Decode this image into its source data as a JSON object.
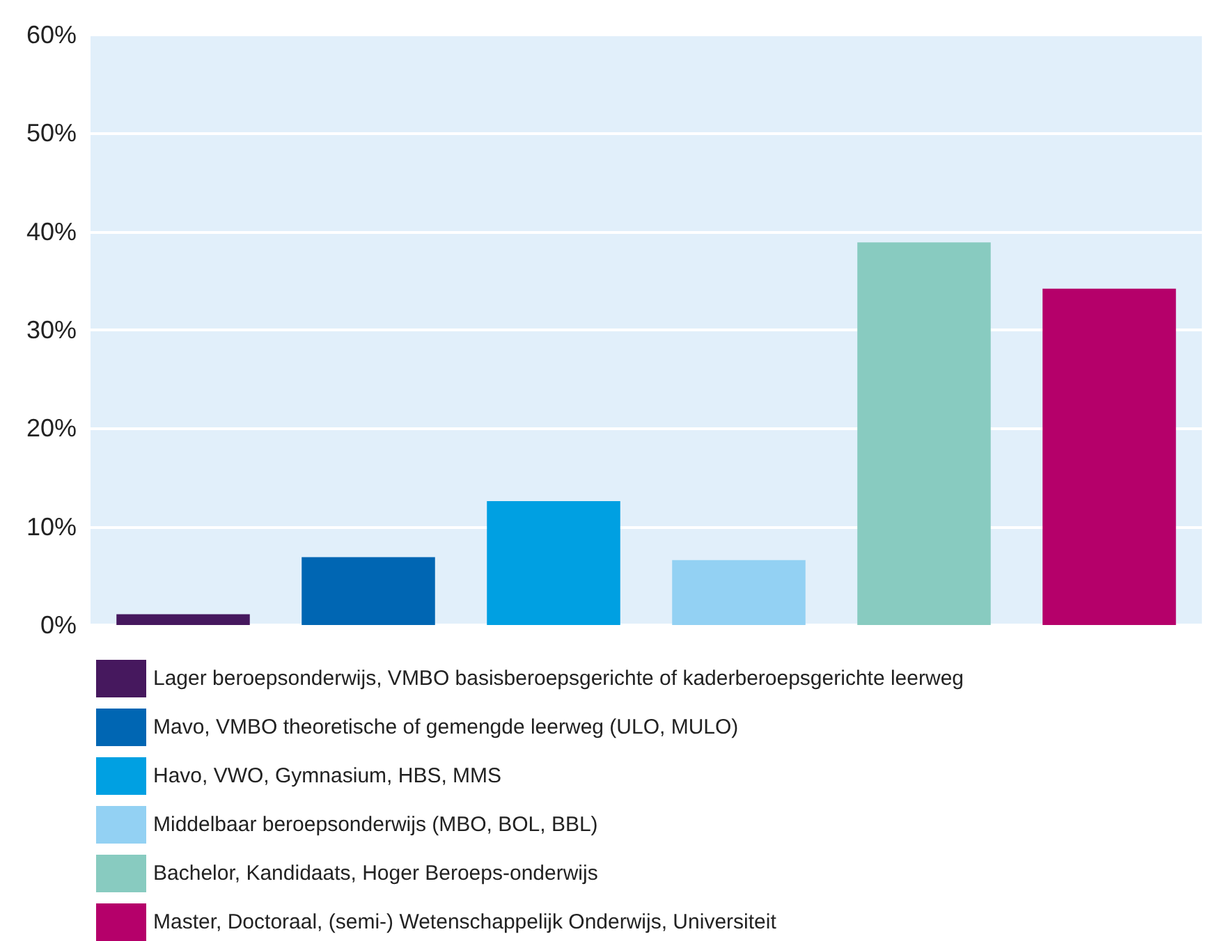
{
  "chart_data": {
    "type": "bar",
    "categories": [
      null,
      null,
      null,
      null,
      null,
      null
    ],
    "series": [
      {
        "name": "Lager beroepsonderwijs, VMBO basisberoepsgerichte of kaderberoepsgerichte leerweg",
        "color": "#46185e",
        "values": [
          1.1,
          null,
          null,
          null,
          null,
          null
        ]
      },
      {
        "name": "Mavo, VMBO theoretische of gemengde leerweg (ULO, MULO)",
        "color": "#0066b3",
        "values": [
          null,
          6.9,
          null,
          null,
          null,
          null
        ]
      },
      {
        "name": "Havo, VWO, Gymnasium, HBS, MMS",
        "color": "#00a0e2",
        "values": [
          null,
          null,
          12.6,
          null,
          null,
          null
        ]
      },
      {
        "name": "Middelbaar beroepsonderwijs (MBO, BOL, BBL)",
        "color": "#93d1f3",
        "values": [
          null,
          null,
          null,
          6.6,
          null,
          null
        ]
      },
      {
        "name": "Bachelor, Kandidaats, Hoger Beroeps-onderwijs",
        "color": "#88cbc0",
        "values": [
          null,
          null,
          null,
          null,
          38.9,
          null
        ]
      },
      {
        "name": "Master, Doctoraal, (semi-) Wetenschappelijk Onderwijs, Universiteit",
        "color": "#b5006a",
        "values": [
          null,
          null,
          null,
          null,
          null,
          34.2
        ]
      }
    ],
    "ylim": [
      0,
      60
    ],
    "yticks": [
      {
        "value": 0,
        "label": "0%"
      },
      {
        "value": 10,
        "label": "10%"
      },
      {
        "value": 20,
        "label": "20%"
      },
      {
        "value": 30,
        "label": "30%"
      },
      {
        "value": 40,
        "label": "40%"
      },
      {
        "value": 50,
        "label": "50%"
      },
      {
        "value": 60,
        "label": "60%"
      }
    ],
    "grid": "y",
    "legend": "bottom"
  }
}
